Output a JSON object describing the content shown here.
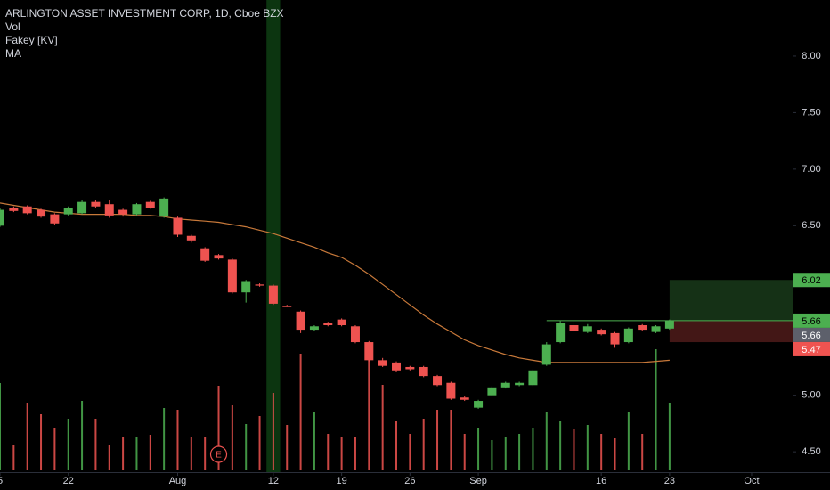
{
  "chart_data": {
    "type": "candlestick",
    "title": "ARLINGTON ASSET INVESTMENT CORP, 1D, Cboe BZX",
    "x": [
      0,
      1,
      2,
      3,
      4,
      5,
      6,
      7,
      8,
      9,
      10,
      11,
      12,
      13,
      14,
      15,
      16,
      17,
      18,
      19,
      20,
      21,
      22,
      23,
      24,
      25,
      26,
      27,
      28,
      29,
      30,
      31,
      32,
      33,
      34,
      35,
      36,
      37,
      38,
      39,
      40,
      41,
      42,
      43,
      44,
      45,
      46,
      47,
      48,
      49
    ],
    "open": [
      6.5,
      6.66,
      6.67,
      6.64,
      6.6,
      6.6,
      6.61,
      6.71,
      6.69,
      6.64,
      6.6,
      6.71,
      6.58,
      6.57,
      6.41,
      6.3,
      6.24,
      6.2,
      5.91,
      5.98,
      5.97,
      5.79,
      5.74,
      5.58,
      5.64,
      5.67,
      5.61,
      5.47,
      5.31,
      5.29,
      5.25,
      5.25,
      5.17,
      5.11,
      4.98,
      4.89,
      5.0,
      5.07,
      5.09,
      5.09,
      5.27,
      5.47,
      5.62,
      5.56,
      5.58,
      5.55,
      5.47,
      5.62,
      5.56,
      5.59
    ],
    "high": [
      6.66,
      6.67,
      6.68,
      6.65,
      6.61,
      6.67,
      6.73,
      6.73,
      6.73,
      6.65,
      6.7,
      6.72,
      6.75,
      6.58,
      6.42,
      6.31,
      6.25,
      6.21,
      6.02,
      5.99,
      5.98,
      5.8,
      5.75,
      5.62,
      5.65,
      5.68,
      5.62,
      5.48,
      5.33,
      5.3,
      5.26,
      5.26,
      5.18,
      5.12,
      4.99,
      4.96,
      5.08,
      5.12,
      5.12,
      5.23,
      5.47,
      5.66,
      5.66,
      5.63,
      5.59,
      5.56,
      5.6,
      5.63,
      5.62,
      5.67
    ],
    "low": [
      6.49,
      6.62,
      6.6,
      6.57,
      6.51,
      6.59,
      6.6,
      6.66,
      6.57,
      6.58,
      6.59,
      6.65,
      6.57,
      6.4,
      6.35,
      6.18,
      6.2,
      5.9,
      5.82,
      5.96,
      5.8,
      5.78,
      5.55,
      5.57,
      5.61,
      5.61,
      5.46,
      5.3,
      5.25,
      5.21,
      5.22,
      5.16,
      5.08,
      4.96,
      4.95,
      4.88,
      4.99,
      5.06,
      5.08,
      5.08,
      5.26,
      5.46,
      5.56,
      5.55,
      5.53,
      5.42,
      5.46,
      5.57,
      5.55,
      5.58
    ],
    "close": [
      6.64,
      6.63,
      6.61,
      6.58,
      6.52,
      6.66,
      6.71,
      6.67,
      6.59,
      6.6,
      6.69,
      6.66,
      6.74,
      6.42,
      6.37,
      6.19,
      6.21,
      5.91,
      6.01,
      5.97,
      5.81,
      5.78,
      5.58,
      5.61,
      5.62,
      5.62,
      5.47,
      5.31,
      5.26,
      5.22,
      5.23,
      5.17,
      5.09,
      4.97,
      4.96,
      4.95,
      5.07,
      5.11,
      5.11,
      5.22,
      5.45,
      5.64,
      5.57,
      5.61,
      5.54,
      5.45,
      5.59,
      5.58,
      5.61,
      5.66
    ],
    "up_color": "#4caf50",
    "down_color": "#ef5350",
    "volume": {
      "name": "Vol",
      "values": [
        97,
        27,
        75,
        62,
        47,
        57,
        77,
        57,
        27,
        37,
        37,
        39,
        69,
        67,
        37,
        37,
        94,
        72,
        51,
        60,
        86,
        50,
        130,
        65,
        40,
        37,
        37,
        125,
        95,
        55,
        40,
        57,
        67,
        67,
        40,
        47,
        33,
        36,
        40,
        47,
        65,
        55,
        45,
        50,
        40,
        35,
        65,
        40,
        135,
        75
      ]
    },
    "ma": {
      "name": "MA",
      "color": "#c8793a",
      "values": [
        6.7,
        6.68,
        6.66,
        6.64,
        6.62,
        6.61,
        6.6,
        6.6,
        6.6,
        6.6,
        6.59,
        6.59,
        6.58,
        6.56,
        6.55,
        6.54,
        6.53,
        6.51,
        6.49,
        6.46,
        6.43,
        6.39,
        6.35,
        6.31,
        6.26,
        6.22,
        6.15,
        6.07,
        5.98,
        5.89,
        5.8,
        5.71,
        5.63,
        5.56,
        5.49,
        5.44,
        5.4,
        5.36,
        5.33,
        5.31,
        5.29,
        5.29,
        5.29,
        5.29,
        5.29,
        5.29,
        5.29,
        5.29,
        5.3,
        5.31
      ]
    },
    "fakey": {
      "name": "Fakey [KV]",
      "start": 40,
      "value": 5.66,
      "color": "#4caf50"
    },
    "highlight": 20,
    "position": {
      "start": 49,
      "entry": 5.66,
      "target": 6.02,
      "stop": 5.47
    },
    "last_color": "#5d606b",
    "earnings": {
      "x": 16,
      "label": "E"
    },
    "xlim": [
      0,
      58
    ],
    "ylim": [
      4.32,
      8.496
    ],
    "xticks": [
      {
        "value": 0,
        "label": "5"
      },
      {
        "value": 5,
        "label": "22"
      },
      {
        "value": 13,
        "label": "Aug"
      },
      {
        "value": 20,
        "label": "12"
      },
      {
        "value": 25,
        "label": "19"
      },
      {
        "value": 30,
        "label": "26"
      },
      {
        "value": 35,
        "label": "Sep"
      },
      {
        "value": 44,
        "label": "16"
      },
      {
        "value": 49,
        "label": "23"
      },
      {
        "value": 55,
        "label": "Oct"
      }
    ],
    "yticks": [
      {
        "value": 4.5,
        "label": "4.50"
      },
      {
        "value": 5,
        "label": "5.00"
      },
      {
        "value": 5.5,
        "label": "5.50"
      },
      {
        "value": 6,
        "label": "6.00"
      },
      {
        "value": 6.5,
        "label": "6.50"
      },
      {
        "value": 7,
        "label": "7.00"
      },
      {
        "value": 7.5,
        "label": "7.50"
      },
      {
        "value": 8,
        "label": "8.00"
      }
    ]
  }
}
